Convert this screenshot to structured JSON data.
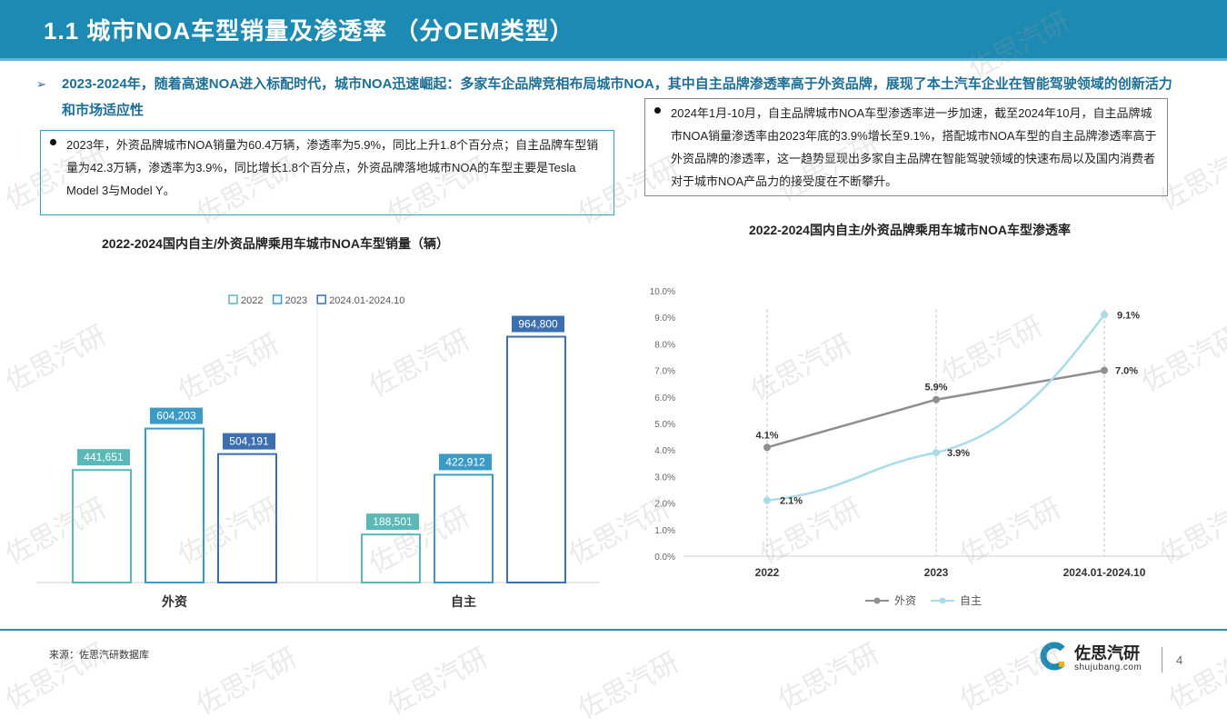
{
  "header": {
    "title": "1.1  城市NOA车型销量及渗透率 （分OEM类型）"
  },
  "lead": {
    "arrow": "➢",
    "text": "2023-2024年，随着高速NOA进入标配时代，城市NOA迅速崛起：多家车企品牌竞相布局城市NOA，其中自主品牌渗透率高于外资品牌，展现了本土汽车企业在智能驾驶领域的创新活力和市场适应性"
  },
  "notes": {
    "left": "2023年，外资品牌城市NOA销量为60.4万辆，渗透率为5.9%，同比上升1.8个百分点；自主品牌车型销量为42.3万辆，渗透率为3.9%，同比增长1.8个百分点，外资品牌落地城市NOA的车型主要是Tesla Model 3与Model Y。",
    "right": "2024年1月-10月，自主品牌城市NOA车型渗透率进一步加速，截至2024年10月，自主品牌城市NOA销量渗透率由2023年底的3.9%增长至9.1%，搭配城市NOA车型的自主品牌渗透率高于外资品牌的渗透率，这一趋势显现出多家自主品牌在智能驾驶领域的快速布局以及国内消费者对于城市NOA产品力的接受度在不断攀升。"
  },
  "chart_data": [
    {
      "type": "bar",
      "title": "2022-2024国内自主/外资品牌乘用车城市NOA车型销量（辆）",
      "categories": [
        "外资",
        "自主"
      ],
      "legend_position": "top",
      "series": [
        {
          "name": "2022",
          "values": [
            441651,
            188501
          ],
          "labels": [
            "441,651",
            "188,501"
          ],
          "color": "#5ab9b7"
        },
        {
          "name": "2023",
          "values": [
            604203,
            422912
          ],
          "labels": [
            "604,203",
            "422,912"
          ],
          "color": "#3a9cc6"
        },
        {
          "name": "2024.01-2024.10",
          "values": [
            504191,
            964800
          ],
          "labels": [
            "504,191",
            "964,800"
          ],
          "color": "#3c6fb0"
        }
      ],
      "ylim": [
        0,
        1050000
      ]
    },
    {
      "type": "line",
      "title": "2022-2024国内自主/外资品牌乘用车城市NOA车型渗透率",
      "x": [
        "2022",
        "2023",
        "2024.01-2024.10"
      ],
      "yticks": [
        "0.0%",
        "1.0%",
        "2.0%",
        "3.0%",
        "4.0%",
        "5.0%",
        "6.0%",
        "7.0%",
        "8.0%",
        "9.0%",
        "10.0%"
      ],
      "ylim": [
        0,
        10
      ],
      "legend_position": "bottom",
      "series": [
        {
          "name": "外资",
          "values": [
            4.1,
            5.9,
            7.0
          ],
          "labels": [
            "4.1%",
            "5.9%",
            "7.0%"
          ],
          "color": "#8f8f8f"
        },
        {
          "name": "自主",
          "values": [
            2.1,
            3.9,
            9.1
          ],
          "labels": [
            "2.1%",
            "3.9%",
            "9.1%"
          ],
          "color": "#a9dbe9"
        }
      ]
    }
  ],
  "footer": {
    "source": "来源：佐思汽研数据库",
    "logo_name": "佐思汽研",
    "logo_url": "shujubang.com",
    "page": "4"
  },
  "watermark": "佐思汽研"
}
